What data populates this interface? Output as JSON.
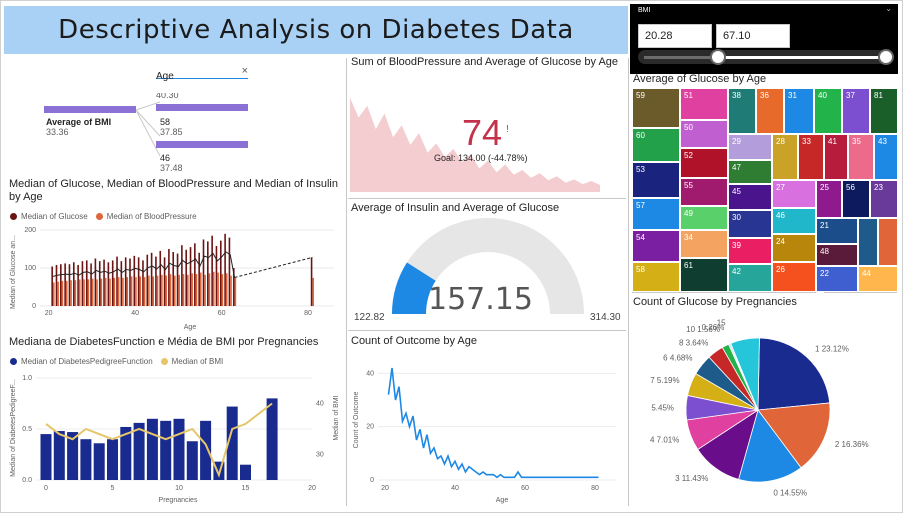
{
  "title": "Descriptive Analysis on Diabetes Data",
  "colors": {
    "purple": "#8b70d6",
    "darkred": "#6b1414",
    "orange": "#e0663a",
    "navy": "#1a2b8f",
    "gold": "#e5c66a",
    "blue": "#1e88e5",
    "pink": "#f2c4c8"
  },
  "decomp_tree": {
    "field": "Age",
    "root_label": "Average of BMI",
    "root_value": "33.36",
    "nodes": [
      {
        "label": "",
        "value": "40.30"
      },
      {
        "label": "58",
        "value": "37.85"
      },
      {
        "label": "46",
        "value": "37.48"
      }
    ]
  },
  "kpi": {
    "title": "Sum of BloodPressure and Average of Glucose by Age",
    "value": "74",
    "flag": "!",
    "goal": "Goal: 134.00 (-44.78%)"
  },
  "gauge": {
    "title": "Average of Insulin and Average of Glucose",
    "value": "157.15",
    "min": "122.82",
    "max": "314.30",
    "fraction": 0.18
  },
  "bmi_slicer": {
    "label": "BMI",
    "min": "20.28",
    "max": "67.10"
  },
  "treemap": {
    "title": "Average of Glucose by Age",
    "cells": [
      {
        "label": "59",
        "color": "#6b5b2a"
      },
      {
        "label": "51",
        "color": "#e040a0"
      },
      {
        "label": "38",
        "color": "#1e7b75"
      },
      {
        "label": "36",
        "color": "#e86a2a"
      },
      {
        "label": "31",
        "color": "#1e88e5"
      },
      {
        "label": "40",
        "color": "#22b34a"
      },
      {
        "label": "37",
        "color": "#7b4fd0"
      },
      {
        "label": "81",
        "color": "#1a5e2a"
      },
      {
        "label": "60",
        "color": "#22a04a"
      },
      {
        "label": "50",
        "color": "#c060d0"
      },
      {
        "label": "29",
        "color": "#b39ddb"
      },
      {
        "label": "28",
        "color": "#c9a227"
      },
      {
        "label": "33",
        "color": "#c62828"
      },
      {
        "label": "41",
        "color": "#b71c3c"
      },
      {
        "label": "35",
        "color": "#ec6a8a"
      },
      {
        "label": "43",
        "color": "#1e88e5"
      },
      {
        "label": "52",
        "color": "#b0122a"
      },
      {
        "label": "53",
        "color": "#1a237e"
      },
      {
        "label": "47",
        "color": "#2e7d32"
      },
      {
        "label": "55",
        "color": "#a01a6e"
      },
      {
        "label": "45",
        "color": "#4a148c"
      },
      {
        "label": "27",
        "color": "#d870e0"
      },
      {
        "label": "25",
        "color": "#8e1a8e"
      },
      {
        "label": "56",
        "color": "#0d1b5e"
      },
      {
        "label": "23",
        "color": "#6a3a9a"
      },
      {
        "label": "57",
        "color": "#1e88e5"
      },
      {
        "label": "49",
        "color": "#5ad06a"
      },
      {
        "label": "30",
        "color": "#283593"
      },
      {
        "label": "46",
        "color": "#1fb7c9"
      },
      {
        "label": "21",
        "color": "#1a4d8a"
      },
      {
        "label": "54",
        "color": "#7b1fa2"
      },
      {
        "label": "34",
        "color": "#f4a460"
      },
      {
        "label": "39",
        "color": "#e91e63"
      },
      {
        "label": "24",
        "color": "#b8860b"
      },
      {
        "label": "48",
        "color": "#5a1a3a"
      },
      {
        "label": "58",
        "color": "#d4b016"
      },
      {
        "label": "61",
        "color": "#0f3d30"
      },
      {
        "label": "42",
        "color": "#26a69a"
      },
      {
        "label": "26",
        "color": "#f4511e"
      },
      {
        "label": "22",
        "color": "#3f5fd0"
      },
      {
        "label": "44",
        "color": "#ffb74d"
      }
    ]
  },
  "line_chart": {
    "title": "Median of Glucose, Median of BloodPressure and Median of Insulin by Age",
    "legend": [
      "Median of Glucose",
      "Median of BloodPressure"
    ],
    "xlabel": "Age",
    "ylabel": "Median of Glucose an..."
  },
  "combo_chart": {
    "title": "Mediana de DiabetesFunction e Média de BMI por Pregnancies",
    "legend": [
      "Median of DiabetesPedigreeFunction",
      "Median of BMI"
    ],
    "xlabel": "Pregnancies",
    "ylabel_left": "Median of DiabetesPedigreeF...",
    "ylabel_right": "Median of BMI"
  },
  "outcome_chart": {
    "title": "Count of Outcome by Age",
    "xlabel": "Age",
    "ylabel": "Count of Outcome"
  },
  "pie_chart": {
    "title": "Count of Glucose by Pregnancies",
    "slices": [
      {
        "label": "1 23.12%",
        "pct": 23.12,
        "color": "#1a2b8f"
      },
      {
        "label": "2 16.36%",
        "pct": 16.36,
        "color": "#e0663a"
      },
      {
        "label": "0 14.55%",
        "pct": 14.55,
        "color": "#1e88e5"
      },
      {
        "label": "3 11.43%",
        "pct": 11.43,
        "color": "#6a0d8a"
      },
      {
        "label": "4 7.01%",
        "pct": 7.01,
        "color": "#e040a0"
      },
      {
        "label": "5.45%",
        "pct": 5.45,
        "color": "#7b4fd0"
      },
      {
        "label": "7 5.19%",
        "pct": 5.19,
        "color": "#d4b016"
      },
      {
        "label": "6 4.68%",
        "pct": 4.68,
        "color": "#1e5a8a"
      },
      {
        "label": "8 3.64%",
        "pct": 3.64,
        "color": "#c62828"
      },
      {
        "label": "10 1.56%",
        "pct": 1.56,
        "color": "#22b34a"
      },
      {
        "label": "0.26%",
        "pct": 0.26,
        "color": "#1fb7c9"
      },
      {
        "label": "15",
        "pct": 0.26,
        "color": "#b39ddb"
      },
      {
        "label": "",
        "pct": 6.49,
        "color": "#26c6da"
      }
    ]
  },
  "chart_data": [
    {
      "type": "bar",
      "title": "Median of Glucose, Median of BloodPressure and Median of Insulin by Age",
      "xlabel": "Age",
      "ylabel": "Median of Glucose an...",
      "x": [
        21,
        22,
        23,
        24,
        25,
        26,
        27,
        28,
        29,
        30,
        31,
        32,
        33,
        34,
        35,
        36,
        37,
        38,
        39,
        40,
        41,
        42,
        43,
        44,
        45,
        46,
        47,
        48,
        49,
        50,
        51,
        52,
        53,
        54,
        55,
        56,
        57,
        58,
        59,
        60,
        61,
        62,
        63,
        81
      ],
      "series": [
        {
          "name": "Median of Glucose",
          "values": [
            104,
            108,
            110,
            112,
            110,
            115,
            108,
            118,
            120,
            112,
            125,
            118,
            122,
            115,
            120,
            130,
            118,
            128,
            125,
            132,
            128,
            120,
            135,
            140,
            130,
            145,
            128,
            150,
            142,
            138,
            160,
            148,
            155,
            165,
            140,
            175,
            170,
            185,
            158,
            172,
            190,
            180,
            100,
            128
          ]
        },
        {
          "name": "Median of BloodPressure",
          "values": [
            62,
            64,
            66,
            66,
            68,
            68,
            70,
            70,
            70,
            72,
            70,
            72,
            74,
            72,
            74,
            76,
            74,
            76,
            78,
            76,
            78,
            76,
            80,
            78,
            80,
            82,
            80,
            84,
            80,
            82,
            84,
            82,
            86,
            84,
            88,
            82,
            86,
            90,
            88,
            84,
            86,
            80,
            74,
            74
          ]
        }
      ],
      "ylim": [
        0,
        200
      ],
      "xticks": [
        20,
        40,
        60,
        80
      ],
      "yticks": [
        0,
        100,
        200
      ]
    },
    {
      "type": "bar",
      "title": "Mediana de DiabetesFunction e Média de BMI por Pregnancies",
      "xlabel": "Pregnancies",
      "x": [
        0,
        1,
        2,
        3,
        4,
        5,
        6,
        7,
        8,
        9,
        10,
        11,
        12,
        13,
        14,
        15,
        17
      ],
      "series": [
        {
          "name": "Median of DiabetesPedigreeFunction",
          "values": [
            0.45,
            0.48,
            0.47,
            0.4,
            0.36,
            0.4,
            0.52,
            0.56,
            0.6,
            0.58,
            0.6,
            0.38,
            0.58,
            0.18,
            0.72,
            0.15,
            0.8
          ]
        },
        {
          "name": "Median of BMI",
          "values": [
            36,
            34,
            33,
            35,
            34,
            33,
            34,
            35,
            34,
            33,
            34,
            35,
            32,
            26,
            35,
            36,
            40
          ]
        }
      ],
      "ylim_left": [
        0,
        1.0
      ],
      "ylim_right": [
        25,
        45
      ],
      "xticks": [
        0,
        5,
        10,
        15,
        20
      ],
      "yticks_left": [
        0.0,
        0.5,
        1.0
      ],
      "yticks_right": [
        30,
        40
      ]
    },
    {
      "type": "line",
      "title": "Count of Outcome by Age",
      "xlabel": "Age",
      "ylabel": "Count of Outcome",
      "x": [
        21,
        22,
        23,
        24,
        25,
        26,
        27,
        28,
        29,
        30,
        31,
        32,
        33,
        34,
        35,
        36,
        37,
        38,
        39,
        40,
        41,
        42,
        43,
        44,
        45,
        46,
        47,
        48,
        49,
        50,
        51,
        52,
        53,
        54,
        55,
        56,
        57,
        58,
        59,
        60,
        81
      ],
      "values": [
        32,
        42,
        30,
        35,
        22,
        25,
        20,
        24,
        15,
        19,
        12,
        17,
        10,
        12,
        8,
        9,
        6,
        9,
        5,
        7,
        4,
        6,
        3,
        5,
        4,
        3,
        2,
        3,
        2,
        2,
        2,
        1,
        2,
        1,
        1,
        1,
        1,
        3,
        1,
        1,
        1
      ],
      "ylim": [
        0,
        45
      ],
      "xticks": [
        20,
        40,
        60,
        80
      ],
      "yticks": [
        0,
        20,
        40
      ]
    },
    {
      "type": "area",
      "title": "Sum of BloodPressure and Average of Glucose by Age",
      "values": [
        120,
        95,
        110,
        80,
        100,
        70,
        85,
        60,
        75,
        50,
        62,
        45,
        55,
        38,
        48,
        30,
        40,
        25,
        35,
        22,
        28,
        18,
        24,
        15,
        20,
        12,
        16,
        10,
        14,
        9
      ]
    },
    {
      "type": "pie",
      "title": "Count of Glucose by Pregnancies",
      "categories": [
        "1",
        "2",
        "0",
        "3",
        "4",
        "5",
        "7",
        "6",
        "8",
        "10",
        "15"
      ],
      "values": [
        23.12,
        16.36,
        14.55,
        11.43,
        7.01,
        5.45,
        5.19,
        4.68,
        3.64,
        1.56,
        0.26
      ]
    }
  ]
}
